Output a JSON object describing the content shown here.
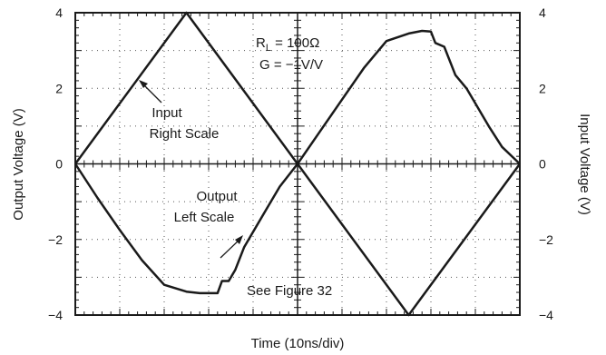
{
  "chart_data": {
    "type": "line",
    "xlabel": "Time (10ns/div)",
    "ylabel_left": "Output Voltage (V)",
    "ylabel_right": "Input Voltage (V)",
    "ylim": [
      -4,
      4
    ],
    "xlim": [
      0,
      10
    ],
    "grid": true,
    "y_ticks": [
      {
        "value": 4,
        "label": "4"
      },
      {
        "value": 2,
        "label": "2"
      },
      {
        "value": 0,
        "label": "0"
      },
      {
        "value": -2,
        "label": "−2"
      },
      {
        "value": -4,
        "label": "−4"
      }
    ],
    "annotations": {
      "conditions_r": "R",
      "conditions_r_sub": "L",
      "conditions_r_val": " = 100Ω",
      "conditions_g": "G = −1V/V",
      "input_line1": "Input",
      "input_line2": "Right Scale",
      "output_line1": "Output",
      "output_line2": "Left Scale",
      "see_figure": "See Figure 32"
    },
    "series": [
      {
        "role": "input",
        "x": [
          0,
          2.5,
          5.0,
          7.5,
          10
        ],
        "y": [
          0,
          4,
          0,
          -4,
          0
        ]
      },
      {
        "role": "output",
        "x": [
          0,
          0.5,
          1.0,
          1.5,
          2.0,
          2.5,
          2.8,
          3.2,
          3.3,
          3.45,
          3.6,
          3.8,
          4.0,
          4.3,
          4.6,
          5.0,
          5.5,
          6.0,
          6.5,
          7.0,
          7.5,
          7.8,
          8.0,
          8.1,
          8.3,
          8.55,
          8.8,
          9.0,
          9.3,
          9.6,
          10
        ],
        "y": [
          0,
          -0.9,
          -1.75,
          -2.55,
          -3.2,
          -3.38,
          -3.42,
          -3.42,
          -3.1,
          -3.1,
          -2.8,
          -2.2,
          -1.8,
          -1.2,
          -0.6,
          0,
          0.85,
          1.7,
          2.55,
          3.25,
          3.45,
          3.52,
          3.5,
          3.2,
          3.1,
          2.35,
          2.0,
          1.6,
          1.0,
          0.45,
          0
        ]
      }
    ]
  }
}
